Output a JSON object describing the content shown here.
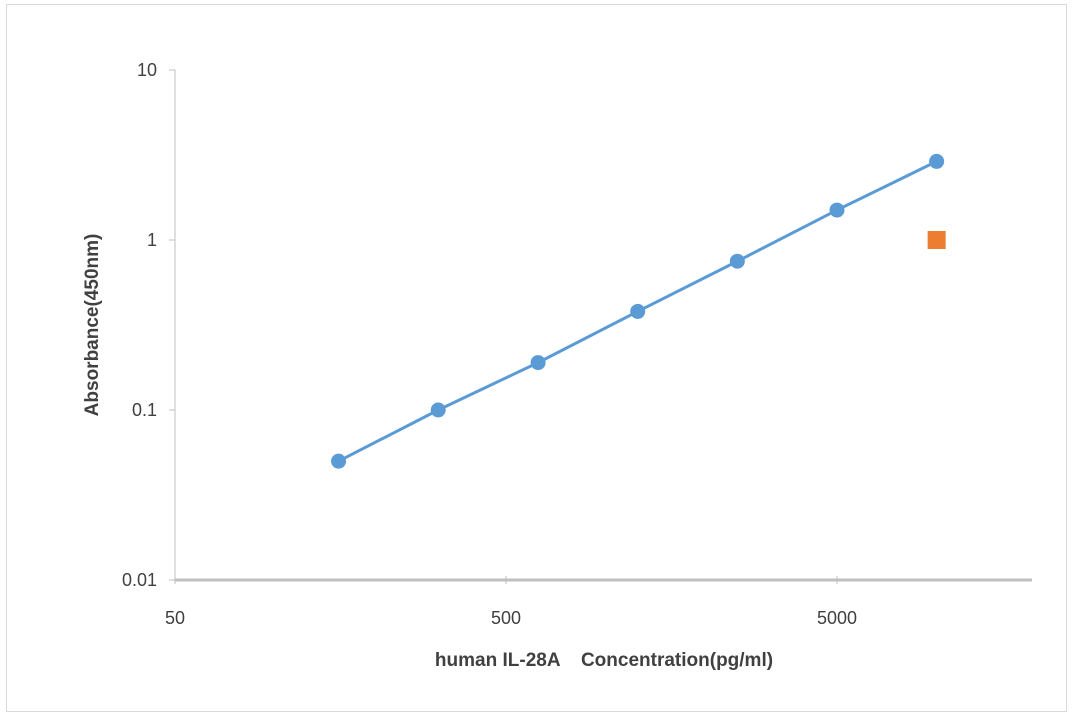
{
  "chart_data": {
    "type": "scatter",
    "title": "",
    "xlabel": "human IL-28A    Concentration(pg/ml)",
    "ylabel": "Absorbance(450nm)",
    "x_scale": "log",
    "y_scale": "log",
    "xlim": [
      50,
      25000
    ],
    "ylim": [
      0.01,
      10
    ],
    "x_ticks": [
      "50",
      "500",
      "5000"
    ],
    "x_tick_values": [
      50,
      500,
      5000
    ],
    "y_ticks": [
      "10",
      "1",
      "0.1",
      "0.01"
    ],
    "y_tick_values": [
      10,
      1,
      0.1,
      0.01
    ],
    "grid": false,
    "legend": "none",
    "series": [
      {
        "x": [
          156,
          312,
          625,
          1250,
          2500,
          5000,
          10000
        ],
        "y": [
          0.05,
          0.1,
          0.19,
          0.38,
          0.75,
          1.5,
          2.9
        ],
        "color": "#5b9bd5",
        "marker": "circle",
        "line": true
      },
      {
        "x": [
          10000
        ],
        "y": [
          1.0
        ],
        "color": "#ed7d31",
        "marker": "square",
        "line": false
      }
    ]
  }
}
